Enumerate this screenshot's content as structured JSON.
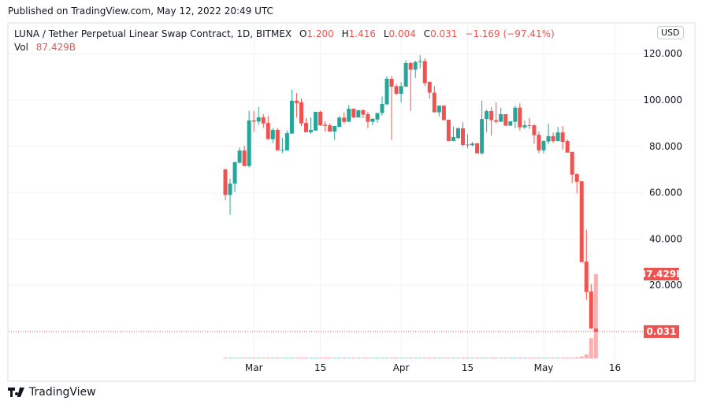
{
  "published": "Published on TradingView.com, May 12, 2022 20:49 UTC",
  "legend": {
    "symbol": "LUNA / Tether Perpetual Linear Swap Contract, 1D, BITMEX",
    "open_label": "O",
    "open": "1.200",
    "high_label": "H",
    "high": "1.416",
    "low_label": "L",
    "low": "0.004",
    "close_label": "C",
    "close": "0.031",
    "change": "−1.169 (−97.41%)",
    "vol_label": "Vol",
    "vol": "87.429B"
  },
  "currency_button": "USD",
  "footer": {
    "brand": "TradingView"
  },
  "colors": {
    "up": "#26a69a",
    "down": "#ef5350",
    "grid": "#f0f3fa"
  },
  "chart_data": {
    "type": "candlestick",
    "price_ticks": [
      "120.000",
      "100.000",
      "80.000",
      "60.000",
      "40.000",
      "20.000"
    ],
    "price_tick_values": [
      120,
      100,
      80,
      60,
      40,
      20
    ],
    "time_ticks": [
      {
        "label": "Mar",
        "date": "2022-03-01"
      },
      {
        "label": "15",
        "date": "2022-03-15"
      },
      {
        "label": "Apr",
        "date": "2022-04-01"
      },
      {
        "label": "15",
        "date": "2022-04-15"
      },
      {
        "label": "May",
        "date": "2022-05-01"
      },
      {
        "label": "16",
        "date": "2022-05-16"
      }
    ],
    "last_price_label": "0.031",
    "last_volume_label": "87.429B",
    "volume_unit": "B",
    "candles": [
      [
        "2022-02-23",
        70.0,
        70.5,
        56.8,
        59.0,
        0.8
      ],
      [
        "2022-02-24",
        59.0,
        66.0,
        50.4,
        63.9,
        0.8
      ],
      [
        "2022-02-25",
        63.9,
        73.5,
        60.2,
        73.1,
        0.8
      ],
      [
        "2022-02-26",
        72.9,
        79.5,
        72.9,
        78.2,
        0.8
      ],
      [
        "2022-02-27",
        78.2,
        80.3,
        71.5,
        71.5,
        0.8
      ],
      [
        "2022-02-28",
        71.5,
        95.3,
        70.9,
        91.2,
        0.8
      ],
      [
        "2022-03-01",
        91.2,
        95.3,
        86.4,
        90.7,
        0.8
      ],
      [
        "2022-03-02",
        90.7,
        96.9,
        89.2,
        92.5,
        0.8
      ],
      [
        "2022-03-03",
        92.5,
        93.9,
        87.9,
        89.9,
        0.8
      ],
      [
        "2022-03-04",
        90.1,
        93.1,
        83.1,
        83.1,
        0.8
      ],
      [
        "2022-03-05",
        83.1,
        87.9,
        81.4,
        87.1,
        0.8
      ],
      [
        "2022-03-06",
        87.1,
        87.9,
        78.3,
        78.3,
        0.8
      ],
      [
        "2022-03-07",
        78.4,
        83.7,
        77.1,
        78.5,
        0.8
      ],
      [
        "2022-03-08",
        78.3,
        86.8,
        78.3,
        85.7,
        0.8
      ],
      [
        "2022-03-09",
        85.5,
        104.4,
        85.5,
        99.7,
        0.8
      ],
      [
        "2022-03-10",
        99.7,
        103.0,
        92.4,
        98.7,
        0.8
      ],
      [
        "2022-03-11",
        99.0,
        100.6,
        88.8,
        89.9,
        0.8
      ],
      [
        "2022-03-12",
        90.1,
        92.2,
        86.1,
        86.1,
        0.8
      ],
      [
        "2022-03-13",
        86.1,
        92.5,
        85.4,
        87.1,
        0.8
      ],
      [
        "2022-03-14",
        86.8,
        94.9,
        86.8,
        94.9,
        0.8
      ],
      [
        "2022-03-15",
        94.9,
        95.4,
        88.8,
        89.1,
        0.8
      ],
      [
        "2022-03-16",
        89.3,
        90.8,
        86.4,
        88.8,
        0.8
      ],
      [
        "2022-03-17",
        89.1,
        89.9,
        86.4,
        86.4,
        0.8
      ],
      [
        "2022-03-18",
        86.4,
        88.8,
        82.8,
        88.8,
        0.8
      ],
      [
        "2022-03-19",
        88.4,
        93.1,
        88.2,
        92.4,
        0.8
      ],
      [
        "2022-03-20",
        92.4,
        94.7,
        89.9,
        90.6,
        0.8
      ],
      [
        "2022-03-21",
        90.6,
        97.9,
        90.6,
        96.2,
        0.8
      ],
      [
        "2022-03-22",
        96.2,
        96.5,
        92.2,
        92.5,
        0.8
      ],
      [
        "2022-03-23",
        92.5,
        95.6,
        92.5,
        95.6,
        0.8
      ],
      [
        "2022-03-24",
        95.6,
        96.0,
        92.2,
        93.7,
        0.8
      ],
      [
        "2022-03-25",
        93.9,
        94.9,
        87.9,
        90.6,
        0.8
      ],
      [
        "2022-03-26",
        90.6,
        92.2,
        89.1,
        91.9,
        0.8
      ],
      [
        "2022-03-27",
        91.6,
        94.4,
        90.2,
        94.4,
        0.8
      ],
      [
        "2022-03-28",
        94.4,
        101.5,
        93.3,
        98.3,
        0.8
      ],
      [
        "2022-03-29",
        98.1,
        110.3,
        98.1,
        109.2,
        0.8
      ],
      [
        "2022-03-30",
        109.2,
        110.5,
        82.8,
        105.8,
        0.8
      ],
      [
        "2022-03-31",
        106.0,
        106.9,
        102.2,
        102.7,
        0.8
      ],
      [
        "2022-04-01",
        102.7,
        107.8,
        99.0,
        106.0,
        0.8
      ],
      [
        "2022-04-02",
        105.8,
        117.3,
        105.8,
        116.0,
        0.8
      ],
      [
        "2022-04-03",
        116.0,
        116.5,
        95.3,
        113.1,
        0.8
      ],
      [
        "2022-04-04",
        113.1,
        117.0,
        109.5,
        116.4,
        0.8
      ],
      [
        "2022-04-05",
        116.4,
        119.4,
        113.7,
        116.8,
        0.8
      ],
      [
        "2022-04-06",
        116.8,
        118.0,
        106.0,
        107.3,
        0.8
      ],
      [
        "2022-04-07",
        107.8,
        108.0,
        100.7,
        103.2,
        0.8
      ],
      [
        "2022-04-08",
        103.2,
        106.0,
        94.7,
        94.7,
        0.8
      ],
      [
        "2022-04-09",
        94.7,
        97.6,
        92.9,
        97.6,
        0.8
      ],
      [
        "2022-04-10",
        97.6,
        97.6,
        91.3,
        91.3,
        0.8
      ],
      [
        "2022-04-11",
        91.5,
        91.5,
        82.3,
        82.3,
        0.8
      ],
      [
        "2022-04-12",
        82.3,
        88.5,
        82.3,
        84.0,
        0.8
      ],
      [
        "2022-04-13",
        83.6,
        88.2,
        83.1,
        87.8,
        0.8
      ],
      [
        "2022-04-14",
        87.8,
        90.5,
        79.9,
        80.6,
        0.8
      ],
      [
        "2022-04-15",
        80.8,
        85.3,
        79.1,
        80.5,
        0.8
      ],
      [
        "2022-04-16",
        80.5,
        81.9,
        80.0,
        81.2,
        0.8
      ],
      [
        "2022-04-17",
        81.3,
        81.4,
        77.0,
        77.0,
        0.8
      ],
      [
        "2022-04-18",
        77.0,
        99.7,
        76.3,
        91.8,
        0.8
      ],
      [
        "2022-04-19",
        91.8,
        95.9,
        86.1,
        95.2,
        0.8
      ],
      [
        "2022-04-20",
        95.2,
        96.9,
        84.6,
        91.3,
        0.8
      ],
      [
        "2022-04-21",
        91.3,
        99.0,
        89.9,
        90.6,
        0.8
      ],
      [
        "2022-04-22",
        90.6,
        96.7,
        90.6,
        93.9,
        0.8
      ],
      [
        "2022-04-23",
        93.9,
        93.9,
        88.9,
        88.9,
        0.8
      ],
      [
        "2022-04-24",
        88.9,
        90.8,
        88.9,
        90.8,
        0.8
      ],
      [
        "2022-04-25",
        90.6,
        97.6,
        87.8,
        96.7,
        0.8
      ],
      [
        "2022-04-26",
        96.7,
        98.6,
        86.8,
        88.2,
        0.8
      ],
      [
        "2022-04-27",
        88.2,
        91.1,
        87.5,
        89.1,
        0.8
      ],
      [
        "2022-04-28",
        89.1,
        92.3,
        87.5,
        88.9,
        0.8
      ],
      [
        "2022-04-29",
        89.1,
        89.6,
        81.1,
        84.8,
        0.8
      ],
      [
        "2022-04-30",
        85.0,
        86.4,
        77.0,
        78.3,
        0.8
      ],
      [
        "2022-05-01",
        78.3,
        82.6,
        77.0,
        82.3,
        0.8
      ],
      [
        "2022-05-02",
        82.1,
        89.8,
        80.9,
        84.4,
        0.8
      ],
      [
        "2022-05-03",
        84.4,
        86.0,
        81.4,
        82.3,
        0.8
      ],
      [
        "2022-05-04",
        82.3,
        88.4,
        82.3,
        86.0,
        0.8
      ],
      [
        "2022-05-05",
        86.0,
        88.8,
        78.6,
        81.9,
        0.8
      ],
      [
        "2022-05-06",
        82.3,
        83.0,
        77.3,
        77.3,
        0.8
      ],
      [
        "2022-05-07",
        77.6,
        77.6,
        64.1,
        67.8,
        0.8
      ],
      [
        "2022-05-08",
        68.0,
        68.5,
        59.7,
        64.7,
        1.2
      ],
      [
        "2022-05-09",
        64.9,
        64.9,
        30.0,
        30.0,
        2.0
      ],
      [
        "2022-05-10",
        30.2,
        44.0,
        13.7,
        17.1,
        4.0
      ],
      [
        "2022-05-11",
        17.3,
        20.5,
        1.1,
        1.4,
        21.0
      ],
      [
        "2022-05-12",
        1.2,
        1.416,
        0.004,
        0.031,
        87.429
      ]
    ]
  }
}
